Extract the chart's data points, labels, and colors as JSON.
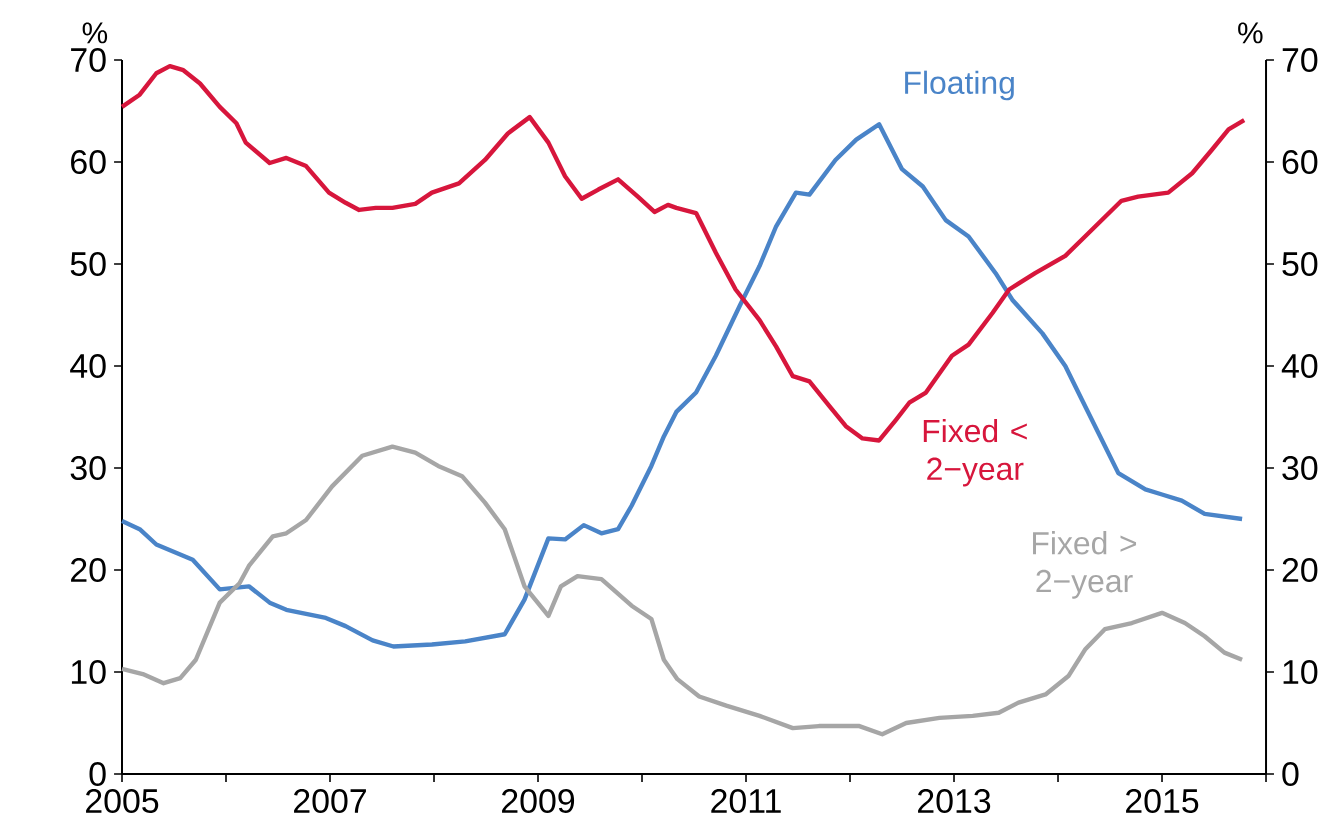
{
  "chart_data": {
    "type": "line",
    "ylabel": "%",
    "y2label": "%",
    "marker": "none",
    "line_style": "solid",
    "xlim": [
      2005,
      2016
    ],
    "ylim": [
      0,
      70
    ],
    "y2lim": [
      0,
      70
    ],
    "xticks": [
      2005,
      {
        "value": 2006,
        "label": null
      },
      2007,
      {
        "value": 2008,
        "label": null
      },
      2009,
      {
        "value": 2010,
        "label": null
      },
      2011,
      {
        "value": 2012,
        "label": null
      },
      2013,
      {
        "value": 2014,
        "label": null
      },
      2015,
      {
        "value": 2016,
        "label": null
      }
    ],
    "yticks": [
      0,
      10,
      20,
      30,
      40,
      50,
      60,
      70
    ],
    "y2ticks": [
      0,
      10,
      20,
      30,
      40,
      50,
      60,
      70
    ],
    "series": [
      {
        "name": "Floating",
        "color": "#4a84c8",
        "x": [
          2005.0,
          2005.17,
          2005.33,
          2005.68,
          2005.94,
          2006.22,
          2006.42,
          2006.58,
          2006.96,
          2007.15,
          2007.41,
          2007.61,
          2007.98,
          2008.3,
          2008.68,
          2008.87,
          2009.1,
          2009.26,
          2009.44,
          2009.61,
          2009.77,
          2009.9,
          2010.09,
          2010.21,
          2010.33,
          2010.52,
          2010.71,
          2010.94,
          2011.13,
          2011.29,
          2011.48,
          2011.61,
          2011.86,
          2012.06,
          2012.28,
          2012.5,
          2012.7,
          2012.92,
          2013.14,
          2013.4,
          2013.56,
          2013.85,
          2014.07,
          2014.23,
          2014.39,
          2014.58,
          2014.84,
          2015.0,
          2015.19,
          2015.41,
          2015.77
        ],
        "values": [
          24.8,
          24.0,
          22.5,
          21.0,
          18.1,
          18.4,
          16.8,
          16.1,
          15.3,
          14.5,
          13.1,
          12.5,
          12.7,
          13.0,
          13.7,
          17.1,
          23.1,
          23.0,
          24.4,
          23.6,
          24.0,
          26.3,
          30.2,
          33.1,
          35.5,
          37.4,
          41.0,
          45.9,
          49.8,
          53.7,
          57.0,
          56.8,
          60.2,
          62.2,
          63.7,
          59.3,
          57.6,
          54.3,
          52.7,
          49.1,
          46.5,
          43.2,
          40.0,
          36.7,
          33.4,
          29.5,
          27.9,
          27.4,
          26.8,
          25.5,
          25.0
        ]
      },
      {
        "name": "Fixed < 2−year",
        "color": "#d7163c",
        "x": [
          2005.0,
          2005.17,
          2005.33,
          2005.46,
          2005.59,
          2005.75,
          2005.94,
          2006.1,
          2006.19,
          2006.42,
          2006.58,
          2006.77,
          2006.99,
          2007.15,
          2007.28,
          2007.44,
          2007.6,
          2007.82,
          2007.98,
          2008.24,
          2008.49,
          2008.71,
          2008.92,
          2009.1,
          2009.26,
          2009.42,
          2009.58,
          2009.77,
          2009.96,
          2010.12,
          2010.25,
          2010.33,
          2010.52,
          2010.71,
          2010.9,
          2011.13,
          2011.29,
          2011.45,
          2011.61,
          2011.8,
          2011.96,
          2012.12,
          2012.28,
          2012.44,
          2012.57,
          2012.73,
          2012.98,
          2013.14,
          2013.37,
          2013.53,
          2013.78,
          2014.07,
          2014.26,
          2014.61,
          2014.77,
          2015.06,
          2015.29,
          2015.48,
          2015.64,
          2015.79
        ],
        "values": [
          65.4,
          66.6,
          68.7,
          69.4,
          69.0,
          67.7,
          65.4,
          63.8,
          61.9,
          59.9,
          60.4,
          59.6,
          57.0,
          56.0,
          55.3,
          55.5,
          55.5,
          55.9,
          57.0,
          57.9,
          60.2,
          62.8,
          64.4,
          61.9,
          58.6,
          56.4,
          57.3,
          58.3,
          56.6,
          55.1,
          55.8,
          55.5,
          55.0,
          51.1,
          47.5,
          44.5,
          41.9,
          39.0,
          38.5,
          36.1,
          34.1,
          32.9,
          32.7,
          34.7,
          36.4,
          37.4,
          41.0,
          42.1,
          45.2,
          47.5,
          49.1,
          50.8,
          52.7,
          56.2,
          56.6,
          57.0,
          58.9,
          61.2,
          63.2,
          64.1
        ]
      },
      {
        "name": "Fixed > 2−year",
        "color": "#a6a6a6",
        "x": [
          2005.0,
          2005.2,
          2005.4,
          2005.56,
          2005.71,
          2005.94,
          2006.13,
          2006.22,
          2006.45,
          2006.58,
          2006.77,
          2007.02,
          2007.31,
          2007.6,
          2007.82,
          2008.04,
          2008.27,
          2008.49,
          2008.68,
          2008.87,
          2009.1,
          2009.22,
          2009.38,
          2009.61,
          2009.9,
          2010.09,
          2010.21,
          2010.34,
          2010.55,
          2010.81,
          2011.13,
          2011.45,
          2011.7,
          2012.09,
          2012.31,
          2012.54,
          2012.86,
          2013.18,
          2013.43,
          2013.62,
          2013.88,
          2014.1,
          2014.26,
          2014.45,
          2014.71,
          2015.0,
          2015.22,
          2015.41,
          2015.6,
          2015.77
        ],
        "values": [
          10.3,
          9.8,
          8.9,
          9.4,
          11.2,
          16.8,
          18.7,
          20.4,
          23.3,
          23.6,
          24.9,
          28.2,
          31.2,
          32.1,
          31.5,
          30.2,
          29.2,
          26.6,
          24.0,
          18.4,
          15.5,
          18.4,
          19.4,
          19.1,
          16.5,
          15.2,
          11.2,
          9.3,
          7.6,
          6.7,
          5.7,
          4.5,
          4.7,
          4.7,
          3.9,
          5.0,
          5.5,
          5.7,
          6.0,
          7.0,
          7.8,
          9.6,
          12.2,
          14.2,
          14.8,
          15.8,
          14.8,
          13.5,
          11.9,
          11.2
        ]
      }
    ]
  }
}
